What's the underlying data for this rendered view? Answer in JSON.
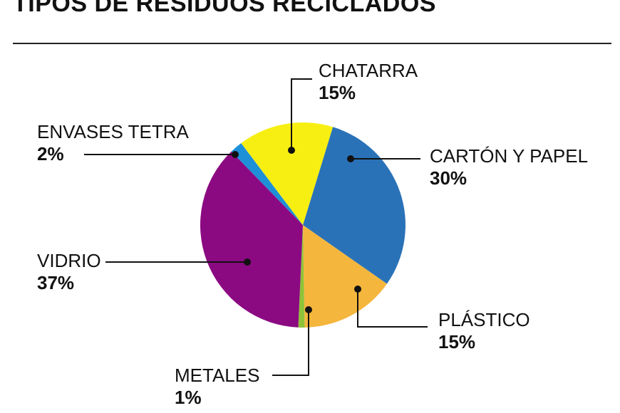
{
  "header": {
    "title": "TIPOS DE RESIDUOS RECICLADOS"
  },
  "chart_data": {
    "type": "pie",
    "title": "TIPOS DE RESIDUOS RECICLADOS",
    "slices": [
      {
        "label": "CARTÓN Y PAPEL",
        "value": 30,
        "pct_label": "30%",
        "color": "#2a72b8"
      },
      {
        "label": "PLÁSTICO",
        "value": 15,
        "pct_label": "15%",
        "color": "#f5b63d"
      },
      {
        "label": "METALES",
        "value": 1,
        "pct_label": "1%",
        "color": "#8fc23a"
      },
      {
        "label": "VIDRIO",
        "value": 37,
        "pct_label": "37%",
        "color": "#8b0a82"
      },
      {
        "label": "ENVASES TETRA",
        "value": 2,
        "pct_label": "2%",
        "color": "#1e90d8"
      },
      {
        "label": "CHATARRA",
        "value": 15,
        "pct_label": "15%",
        "color": "#f7ef12"
      }
    ]
  }
}
